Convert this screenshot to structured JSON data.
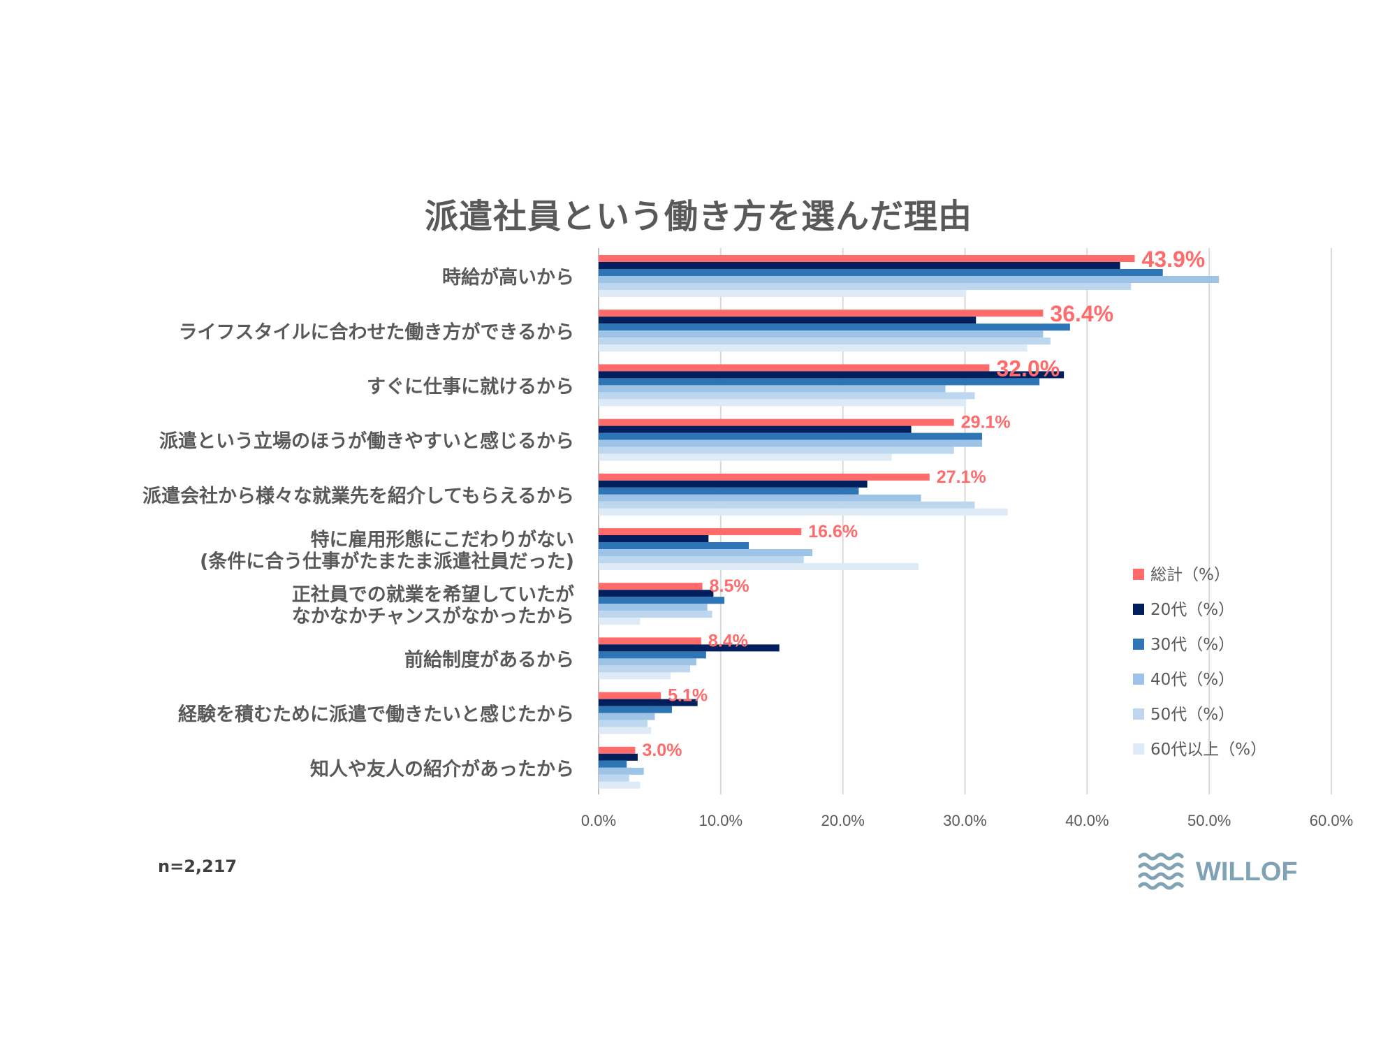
{
  "chart_data": {
    "type": "bar",
    "orientation": "horizontal",
    "title": "派遣社員という働き方を選んだ理由",
    "categories": [
      "時給が高いから",
      "ライフスタイルに合わせた働き方ができるから",
      "すぐに仕事に就けるから",
      "派遣という立場のほうが働きやすいと感じるから",
      "派遣会社から様々な就業先を紹介してもらえるから",
      "特に雇用形態にこだわりがない\n(条件に合う仕事がたまたま派遣社員だった)",
      "正社員での就業を希望していたが\nなかなかチャンスがなかったから",
      "前給制度があるから",
      "経験を積むために派遣で働きたいと感じたから",
      "知人や友人の紹介があったから"
    ],
    "series": [
      {
        "name": "総計（%）",
        "color": "#ff6b6b",
        "values": [
          43.9,
          36.4,
          32.0,
          29.1,
          27.1,
          16.6,
          8.5,
          8.4,
          5.1,
          3.0
        ]
      },
      {
        "name": "20代（%）",
        "color": "#001f5c",
        "values": [
          42.7,
          30.9,
          38.1,
          25.6,
          22.0,
          9.0,
          9.4,
          14.8,
          8.1,
          3.2
        ]
      },
      {
        "name": "30代（%）",
        "color": "#2e75b6",
        "values": [
          46.2,
          38.6,
          36.1,
          31.4,
          21.3,
          12.3,
          10.3,
          8.8,
          6.0,
          2.3
        ]
      },
      {
        "name": "40代（%）",
        "color": "#9dc3e6",
        "values": [
          50.8,
          36.4,
          28.4,
          31.4,
          26.4,
          17.5,
          8.9,
          8.0,
          4.6,
          3.7
        ]
      },
      {
        "name": "50代（%）",
        "color": "#bdd7ee",
        "values": [
          43.6,
          37.0,
          30.8,
          29.1,
          30.8,
          16.8,
          9.3,
          7.5,
          4.0,
          2.5
        ]
      },
      {
        "name": "60代以上（%）",
        "color": "#deebf7",
        "values": [
          30.1,
          35.1,
          30.1,
          24.0,
          33.5,
          26.2,
          3.4,
          5.9,
          4.3,
          3.4
        ]
      }
    ],
    "data_labels": [
      "43.9%",
      "36.4%",
      "32.0%",
      "29.1%",
      "27.1%",
      "16.6%",
      "8.5%",
      "8.4%",
      "5.1%",
      "3.0%"
    ],
    "x_ticks": [
      "0.0%",
      "10.0%",
      "20.0%",
      "30.0%",
      "40.0%",
      "50.0%",
      "60.0%"
    ],
    "xlim": [
      0,
      60
    ],
    "grid": "vertical",
    "legend_position": "right"
  },
  "sample_note": "n=2,217",
  "logo_text": "WILLOF"
}
